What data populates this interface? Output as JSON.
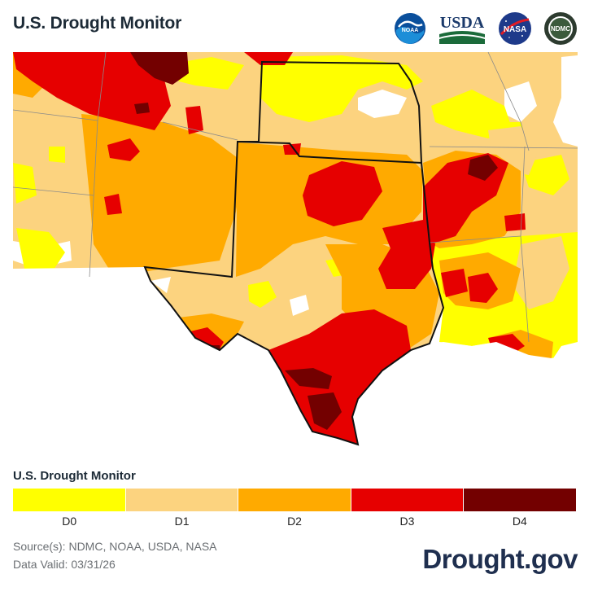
{
  "header": {
    "title": "U.S. Drought Monitor"
  },
  "logos": [
    {
      "name": "noaa-logo",
      "text": "NOAA"
    },
    {
      "name": "usda-logo",
      "text": "USDA"
    },
    {
      "name": "nasa-logo",
      "text": "NASA"
    },
    {
      "name": "ndmc-logo",
      "text": "NDMC"
    }
  ],
  "legend": {
    "title": "U.S. Drought Monitor",
    "categories": [
      {
        "label": "D0",
        "color": "#ffff00"
      },
      {
        "label": "D1",
        "color": "#fcd37f"
      },
      {
        "label": "D2",
        "color": "#ffaa00"
      },
      {
        "label": "D3",
        "color": "#e60000"
      },
      {
        "label": "D4",
        "color": "#730000"
      }
    ]
  },
  "footer": {
    "sources": "Source(s): NDMC, NOAA, USDA, NASA",
    "valid": "Data Valid: 03/31/26",
    "brand": "Drought.gov"
  }
}
